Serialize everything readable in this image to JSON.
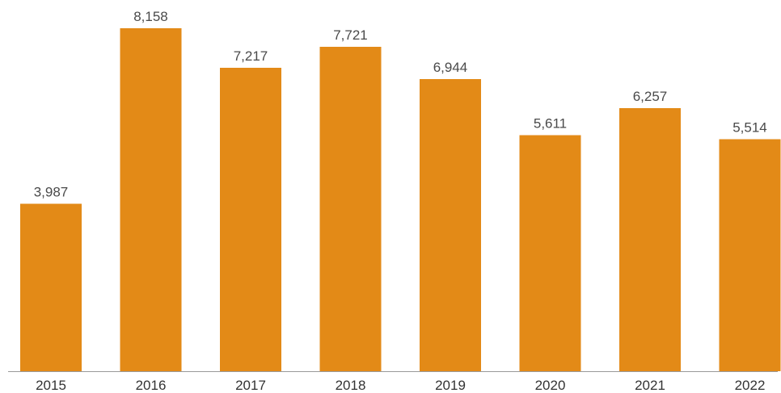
{
  "chart_data": {
    "type": "bar",
    "title": "",
    "xlabel": "",
    "ylabel": "",
    "categories": [
      "2015",
      "2016",
      "2017",
      "2018",
      "2019",
      "2020",
      "2021",
      "2022"
    ],
    "values": [
      3987,
      8158,
      7217,
      7721,
      6944,
      5611,
      6257,
      5514
    ],
    "value_labels": [
      "3,987",
      "8,158",
      "7,217",
      "7,721",
      "6,944",
      "5,611",
      "6,257",
      "5,514"
    ],
    "ylim": [
      0,
      8158
    ],
    "grid": false,
    "legend": "none",
    "colors": {
      "bar": "#E38A17",
      "axis": "#9A9A9A",
      "text": "#4A4A4A"
    }
  }
}
